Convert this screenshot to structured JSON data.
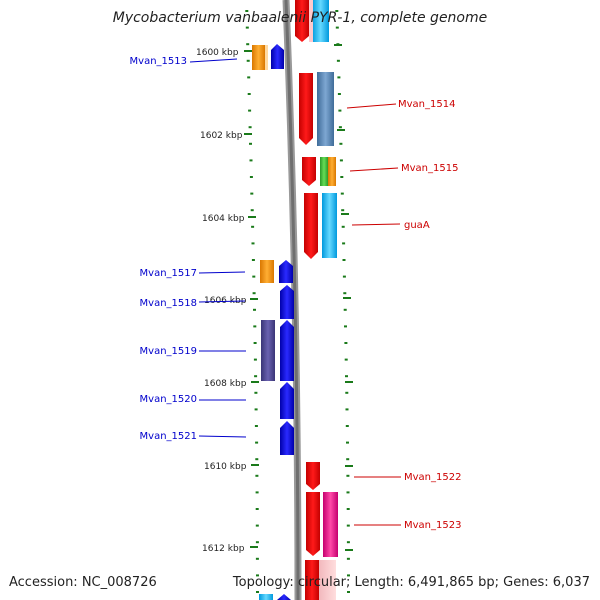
{
  "title": "Mycobacterium vanbaalenii PYR-1, complete genome",
  "accession_text": "Accession: NC_008726",
  "topology_text": "Topology: circular; Length: 6,491,865 bp; Genes: 6,037",
  "kbp_labels": [
    "1600 kbp",
    "1602 kbp",
    "1604 kbp",
    "1606 kbp",
    "1608 kbp",
    "1610 kbp",
    "1612 kbp"
  ],
  "genes_left": [
    "Mvan_1513",
    "Mvan_1517",
    "Mvan_1518",
    "Mvan_1519",
    "Mvan_1520",
    "Mvan_1521"
  ],
  "genes_right": [
    "Mvan_1514",
    "Mvan_1515",
    "guaA",
    "Mvan_1522",
    "Mvan_1523"
  ],
  "colors": {
    "left_label": "#0000cc",
    "right_label": "#cc0000",
    "tick": "#1a7a1a",
    "backbone": "#808080"
  }
}
